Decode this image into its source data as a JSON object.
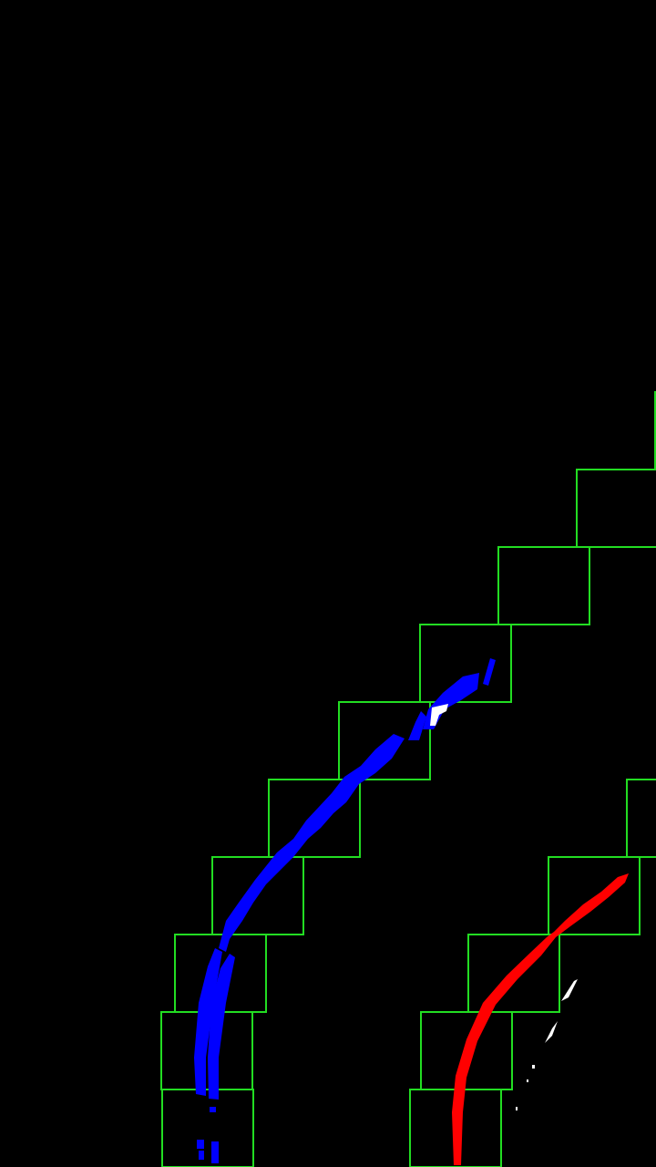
{
  "colors": {
    "background": "#000000",
    "window": "#22dd22",
    "left_lane": "#0000ff",
    "right_lane": "#ff0000",
    "residue": "#ffffff"
  },
  "windows": {
    "left_lane": 10,
    "right_lane": 5
  }
}
